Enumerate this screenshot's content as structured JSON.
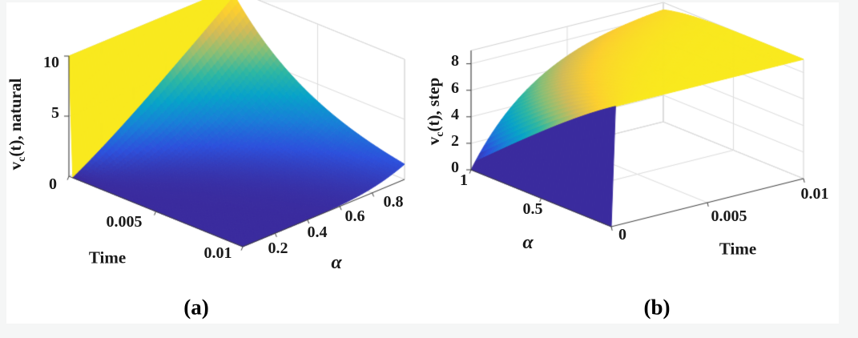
{
  "page": {
    "background_color": "#f5f6f6",
    "figure_background_color": "#ffffff"
  },
  "colormap": {
    "name": "parula-like",
    "stops": [
      {
        "t": 0.0,
        "c": "#3a2b9e"
      },
      {
        "t": 0.125,
        "c": "#2d50dc"
      },
      {
        "t": 0.25,
        "c": "#187fd8"
      },
      {
        "t": 0.375,
        "c": "#07a3c9"
      },
      {
        "t": 0.5,
        "c": "#2db7a3"
      },
      {
        "t": 0.625,
        "c": "#86bf77"
      },
      {
        "t": 0.75,
        "c": "#d2bb58"
      },
      {
        "t": 0.875,
        "c": "#fcce30"
      },
      {
        "t": 1.0,
        "c": "#f9e91e"
      }
    ]
  },
  "chart_data": [
    {
      "id": "a",
      "type": "surface_3d",
      "caption": "(a)",
      "axes": {
        "x": {
          "label": "Time",
          "range": [
            0,
            0.01
          ],
          "ticks": [
            {
              "label": "0",
              "value": 0
            },
            {
              "label": "0.005",
              "value": 0.005
            },
            {
              "label": "0.01",
              "value": 0.01
            }
          ]
        },
        "y": {
          "label": "α",
          "range": [
            0,
            1
          ],
          "ticks": [
            {
              "label": "0.2",
              "value": 0.2
            },
            {
              "label": "0.4",
              "value": 0.4
            },
            {
              "label": "0.6",
              "value": 0.6
            },
            {
              "label": "0.8",
              "value": 0.8
            }
          ]
        },
        "z": {
          "label": "v_c(t), natural",
          "label_parts": {
            "main": "v",
            "sub": "c",
            "rest": "(t), natural"
          },
          "range": [
            0,
            10
          ],
          "ticks": [
            {
              "label": "5",
              "value": 5
            },
            {
              "label": "10",
              "value": 10
            }
          ]
        }
      },
      "surface": {
        "model": "fractional_rc_two_term",
        "response": "natural",
        "amplitude": 10,
        "tau_fast": 1e-05,
        "tau_slow_base": 0.0008,
        "tau_slow_k": 1.8,
        "time_max": 0.01,
        "alpha_min": 0,
        "alpha_max": 1,
        "grid_n_time": 45,
        "grid_n_alpha": 50
      },
      "grid": true,
      "summary": "Natural response surface: v_c = 10 at t = 0 for every α and decays toward 0; the decay is near-instantaneous for small α (dark-blue floor) and slower, exponential-like, for α near 1 (about 1.3 remaining at t = 0.01)."
    },
    {
      "id": "b",
      "type": "surface_3d",
      "caption": "(b)",
      "axes": {
        "x": {
          "label": "Time",
          "range": [
            0,
            0.01
          ],
          "ticks": [
            {
              "label": "0",
              "value": 0
            },
            {
              "label": "0.005",
              "value": 0.005
            },
            {
              "label": "0.01",
              "value": 0.01
            }
          ]
        },
        "y": {
          "label": "α",
          "range": [
            0,
            1
          ],
          "ticks": [
            {
              "label": "0.5",
              "value": 0.5
            },
            {
              "label": "1",
              "value": 1
            }
          ]
        },
        "z": {
          "label": "v_c(t), step",
          "label_parts": {
            "main": "v",
            "sub": "c",
            "rest": "(t), step"
          },
          "range": [
            0,
            9
          ],
          "ticks": [
            {
              "label": "0",
              "value": 0
            },
            {
              "label": "2",
              "value": 2
            },
            {
              "label": "4",
              "value": 4
            },
            {
              "label": "6",
              "value": 6
            },
            {
              "label": "8",
              "value": 8
            }
          ]
        }
      },
      "surface": {
        "model": "fractional_rc_two_term",
        "response": "step",
        "amplitude": 9,
        "tau_fast": 1e-05,
        "tau_slow_base": 0.0008,
        "tau_slow_k": 1.5,
        "time_max": 0.01,
        "alpha_min": 0,
        "alpha_max": 1,
        "grid_n_time": 45,
        "grid_n_alpha": 50
      },
      "grid": true,
      "summary": "Step response surface: v_c = 0 at t = 0 for every α and rises toward ≈9; the rise is near-instantaneous for small α (tall dark-blue wall at the first time step) and gradual for α near 1, forming a yellow plateau at ≈9."
    }
  ]
}
